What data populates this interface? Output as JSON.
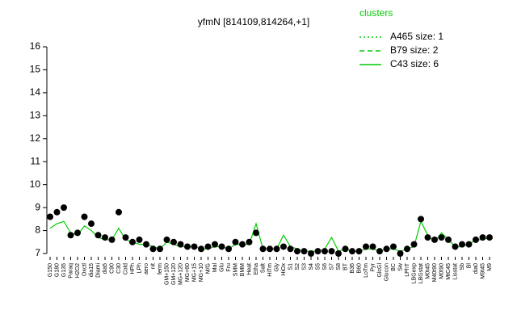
{
  "chart_data": {
    "type": "line",
    "title": "yfmN [814109,814264,+1]",
    "legend_title": "clusters",
    "legend": [
      {
        "name": "A465 size: 1",
        "style": "dotted"
      },
      {
        "name": "B79 size: 2",
        "style": "dashed"
      },
      {
        "name": "C43 size: 6",
        "style": "solid"
      }
    ],
    "color": "#00cc00",
    "point_color": "#000000",
    "categories": [
      "G150",
      "G180",
      "G135",
      "Paraq",
      "H2O2",
      "Oxctl",
      "dia15",
      "Diami",
      "dia5",
      "C90",
      "C30",
      "Cold",
      "HPh",
      "LPh",
      "aero",
      "nit",
      "ferm",
      "GM+150",
      "GM+120",
      "MG+120",
      "MG+60",
      "MG+15",
      "MG+10",
      "M/G",
      "Mal",
      "Glu",
      "Fru",
      "SMM",
      "BMM",
      "Heat",
      "Etha",
      "Salt",
      "HiTm",
      "Gly",
      "HiOx",
      "S1",
      "S2",
      "S3",
      "S4",
      "S5",
      "S6",
      "S7",
      "S8",
      "BT",
      "B36",
      "B60",
      "LoTm",
      "Pyr",
      "GlcGl",
      "Glucon",
      "BC",
      "Sw",
      "LPhT",
      "LBGexp",
      "LBGstat",
      "M0t45",
      "M40t90",
      "M0t90",
      "MtC45",
      "Lisstat",
      "Sb",
      "Bl",
      "dia0",
      "M9t45",
      "M9"
    ],
    "points": [
      8.6,
      8.8,
      9.0,
      7.8,
      7.9,
      8.6,
      8.3,
      7.8,
      7.7,
      7.6,
      8.8,
      7.7,
      7.5,
      7.6,
      7.4,
      7.2,
      7.2,
      7.6,
      7.5,
      7.4,
      7.3,
      7.3,
      7.2,
      7.3,
      7.4,
      7.3,
      7.2,
      7.5,
      7.4,
      7.5,
      7.9,
      7.2,
      7.2,
      7.2,
      7.3,
      7.2,
      7.1,
      7.1,
      7.0,
      7.1,
      7.1,
      7.1,
      7.0,
      7.2,
      7.1,
      7.1,
      7.3,
      7.3,
      7.1,
      7.2,
      7.3,
      7.0,
      7.2,
      7.4,
      8.5,
      7.7,
      7.6,
      7.7,
      7.6,
      7.3,
      7.4,
      7.4,
      7.6,
      7.7,
      7.7
    ],
    "line_values": [
      8.1,
      8.3,
      8.4,
      7.9,
      7.8,
      8.2,
      8.0,
      7.7,
      7.6,
      7.6,
      8.1,
      7.6,
      7.5,
      7.4,
      7.4,
      7.3,
      7.2,
      7.5,
      7.4,
      7.3,
      7.3,
      7.3,
      7.2,
      7.2,
      7.3,
      7.3,
      7.2,
      7.4,
      7.4,
      7.4,
      8.3,
      7.2,
      7.2,
      7.2,
      7.8,
      7.3,
      7.2,
      7.1,
      7.1,
      7.1,
      7.2,
      7.7,
      7.1,
      7.2,
      7.1,
      7.1,
      7.2,
      7.2,
      7.1,
      7.2,
      7.2,
      7.1,
      7.2,
      7.3,
      8.4,
      7.8,
      7.5,
      7.9,
      7.6,
      7.3,
      7.3,
      7.4,
      7.6,
      7.6,
      7.7
    ],
    "ylim": [
      7,
      16
    ],
    "yticks": [
      7,
      8,
      9,
      10,
      11,
      12,
      13,
      14,
      15,
      16
    ]
  }
}
